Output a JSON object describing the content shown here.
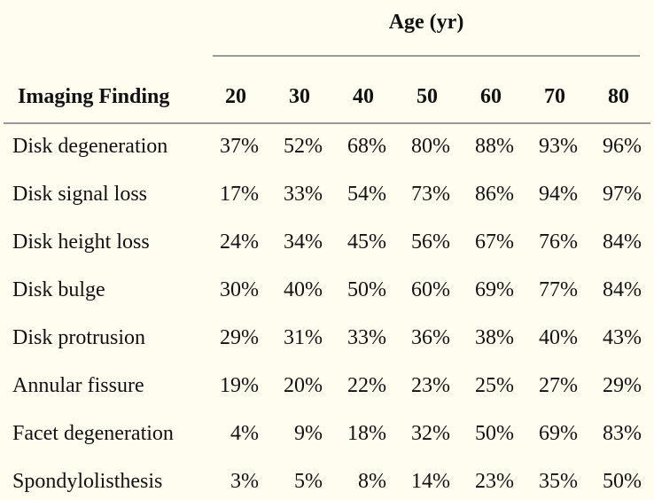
{
  "table": {
    "group_header": "Age (yr)",
    "row_header": "Imaging Finding",
    "ages": [
      "20",
      "30",
      "40",
      "50",
      "60",
      "70",
      "80"
    ],
    "rows": [
      {
        "label": "Disk degeneration",
        "values": [
          "37%",
          "52%",
          "68%",
          "80%",
          "88%",
          "93%",
          "96%"
        ]
      },
      {
        "label": "Disk signal loss",
        "values": [
          "17%",
          "33%",
          "54%",
          "73%",
          "86%",
          "94%",
          "97%"
        ]
      },
      {
        "label": "Disk height loss",
        "values": [
          "24%",
          "34%",
          "45%",
          "56%",
          "67%",
          "76%",
          "84%"
        ]
      },
      {
        "label": "Disk bulge",
        "values": [
          "30%",
          "40%",
          "50%",
          "60%",
          "69%",
          "77%",
          "84%"
        ]
      },
      {
        "label": "Disk protrusion",
        "values": [
          "29%",
          "31%",
          "33%",
          "36%",
          "38%",
          "40%",
          "43%"
        ]
      },
      {
        "label": "Annular fissure",
        "values": [
          "19%",
          "20%",
          "22%",
          "23%",
          "25%",
          "27%",
          "29%"
        ]
      },
      {
        "label": "Facet degeneration",
        "values": [
          "4%",
          "9%",
          "18%",
          "32%",
          "50%",
          "69%",
          "83%"
        ]
      },
      {
        "label": "Spondylolisthesis",
        "values": [
          "3%",
          "5%",
          "8%",
          "14%",
          "23%",
          "35%",
          "50%"
        ]
      }
    ]
  },
  "colors": {
    "background": "#fffdf0",
    "text": "#111111",
    "rule": "#999999"
  }
}
